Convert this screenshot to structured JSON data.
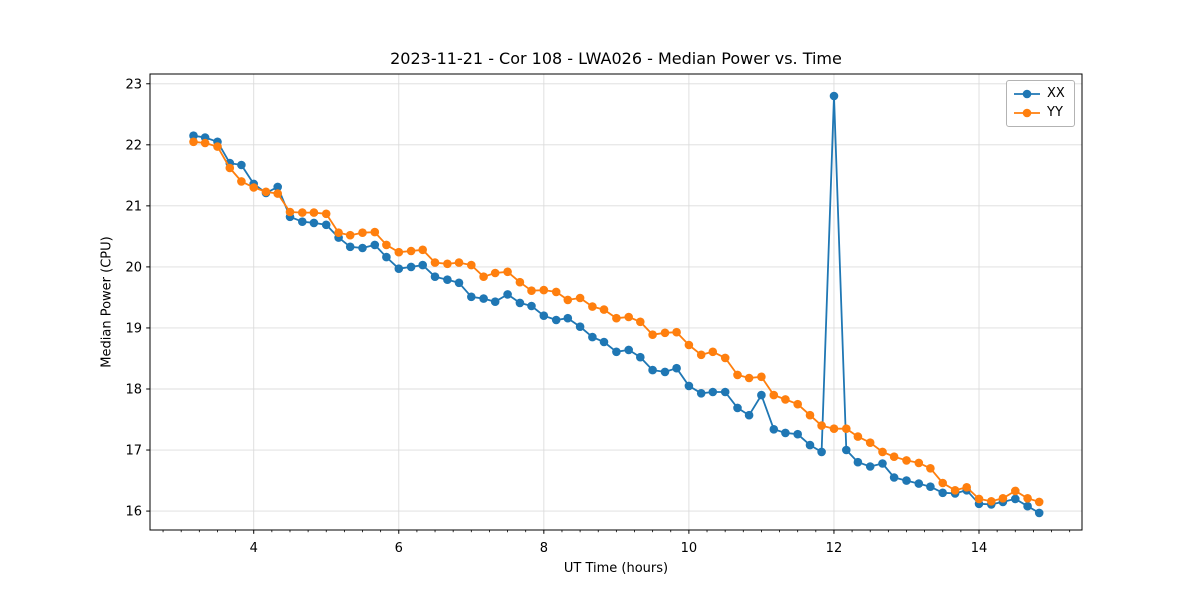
{
  "chart_data": {
    "type": "line",
    "title": "2023-11-21 - Cor 108 - LWA026 - Median Power vs. Time",
    "xlabel": "UT Time (hours)",
    "ylabel": "Median Power (CPU)",
    "xlim": [
      2.57,
      15.42
    ],
    "ylim": [
      15.69,
      23.16
    ],
    "x_ticks": [
      4,
      6,
      8,
      10,
      12,
      14
    ],
    "x_minor_tick_step": 0.25,
    "y_ticks": [
      16,
      17,
      18,
      19,
      20,
      21,
      22,
      23
    ],
    "grid": true,
    "grid_color": "#dcdcdc",
    "legend_position": "upper right",
    "x": [
      3.17,
      3.33,
      3.5,
      3.67,
      3.83,
      4.0,
      4.17,
      4.33,
      4.5,
      4.67,
      4.83,
      5.0,
      5.17,
      5.33,
      5.5,
      5.67,
      5.83,
      6.0,
      6.17,
      6.33,
      6.5,
      6.67,
      6.83,
      7.0,
      7.17,
      7.33,
      7.5,
      7.67,
      7.83,
      8.0,
      8.17,
      8.33,
      8.5,
      8.67,
      8.83,
      9.0,
      9.17,
      9.33,
      9.5,
      9.67,
      9.83,
      10.0,
      10.17,
      10.33,
      10.5,
      10.67,
      10.83,
      11.0,
      11.17,
      11.33,
      11.5,
      11.67,
      11.83,
      12.0,
      12.17,
      12.33,
      12.5,
      12.67,
      12.83,
      13.0,
      13.17,
      13.33,
      13.5,
      13.67,
      13.83,
      14.0,
      14.17,
      14.33,
      14.5,
      14.67,
      14.83
    ],
    "series": [
      {
        "name": "XX",
        "color": "#1f77b4",
        "values": [
          22.15,
          22.12,
          22.05,
          21.7,
          21.67,
          21.36,
          21.21,
          21.31,
          20.82,
          20.74,
          20.72,
          20.69,
          20.48,
          20.33,
          20.31,
          20.36,
          20.16,
          19.97,
          20.0,
          20.03,
          19.84,
          19.79,
          19.74,
          19.51,
          19.48,
          19.43,
          19.55,
          19.41,
          19.36,
          19.2,
          19.13,
          19.16,
          19.02,
          18.85,
          18.77,
          18.61,
          18.64,
          18.52,
          18.31,
          18.28,
          18.34,
          18.05,
          17.93,
          17.95,
          17.95,
          17.69,
          17.57,
          17.9,
          17.34,
          17.28,
          17.26,
          17.08,
          16.97,
          22.8,
          17.0,
          16.8,
          16.73,
          16.78,
          16.55,
          16.5,
          16.45,
          16.4,
          16.3,
          16.29,
          16.34,
          16.12,
          16.11,
          16.15,
          16.2,
          16.08,
          15.97
        ]
      },
      {
        "name": "YY",
        "color": "#ff7f0e",
        "values": [
          22.05,
          22.03,
          21.97,
          21.62,
          21.4,
          21.3,
          21.23,
          21.2,
          20.9,
          20.89,
          20.89,
          20.87,
          20.56,
          20.52,
          20.56,
          20.57,
          20.36,
          20.24,
          20.26,
          20.28,
          20.07,
          20.05,
          20.07,
          20.03,
          19.84,
          19.9,
          19.92,
          19.75,
          19.61,
          19.62,
          19.59,
          19.46,
          19.49,
          19.35,
          19.3,
          19.16,
          19.18,
          19.1,
          18.89,
          18.92,
          18.93,
          18.72,
          18.56,
          18.61,
          18.51,
          18.23,
          18.18,
          18.2,
          17.9,
          17.83,
          17.75,
          17.57,
          17.4,
          17.35,
          17.35,
          17.22,
          17.12,
          16.97,
          16.89,
          16.83,
          16.79,
          16.7,
          16.46,
          16.34,
          16.39,
          16.2,
          16.16,
          16.21,
          16.33,
          16.21,
          16.15
        ]
      }
    ]
  }
}
